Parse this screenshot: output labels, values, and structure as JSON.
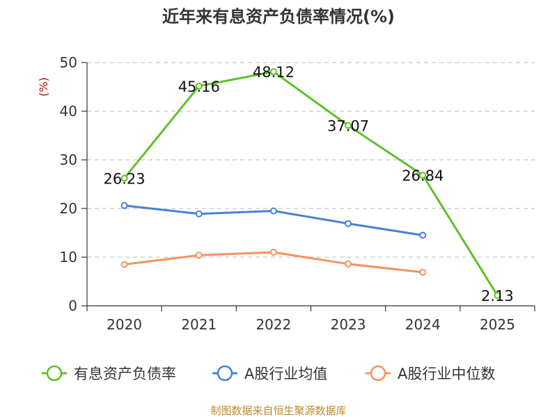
{
  "chart_data": {
    "type": "line",
    "title": "近年来有息资产负债率情况(%)",
    "ylabel": "(%)",
    "xlabel": "",
    "categories": [
      "2020",
      "2021",
      "2022",
      "2023",
      "2024",
      "2025"
    ],
    "ylim": [
      0,
      50
    ],
    "yticks": [
      0,
      10,
      20,
      30,
      40,
      50
    ],
    "grid": true,
    "legend_position": "bottom",
    "series": [
      {
        "name": "有息资产负债率",
        "color": "#5cc12a",
        "values": [
          26.23,
          45.16,
          48.12,
          37.07,
          26.84,
          2.13
        ],
        "labels": [
          "26.23",
          "45.16",
          "48.12",
          "37.07",
          "26.84",
          "2.13"
        ]
      },
      {
        "name": "A股行业均值",
        "color": "#4a7fd6",
        "values": [
          20.6,
          18.9,
          19.5,
          16.9,
          14.5,
          null
        ]
      },
      {
        "name": "A股行业中位数",
        "color": "#f5925e",
        "values": [
          8.5,
          10.4,
          11.0,
          8.6,
          6.9,
          null
        ]
      }
    ],
    "source": "制图数据来自恒生聚源数据库"
  }
}
